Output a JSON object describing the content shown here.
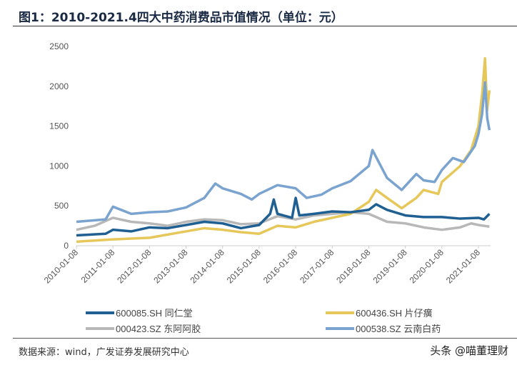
{
  "title": "图1：2010-2021.4四大中药消费品市值情况（单位：元）",
  "source": "数据来源：wind，广发证券发展研究中心",
  "watermark": "头条 @喵董理财",
  "chart_data": {
    "type": "line",
    "title": "图1：2010-2021.4四大中药消费品市值情况（单位：元）",
    "ylim": [
      0,
      2500
    ],
    "yticks": [
      "0",
      "500",
      "1000",
      "1500",
      "2000",
      "2500"
    ],
    "xlim": [
      2010.0,
      2021.3
    ],
    "xticks": [
      "2010-01-08",
      "2011-01-08",
      "2012-01-08",
      "2013-01-08",
      "2014-01-08",
      "2015-01-08",
      "2016-01-08",
      "2017-01-08",
      "2018-01-08",
      "2019-01-08",
      "2020-01-08",
      "2021-01-08"
    ],
    "grid": false,
    "legend_placement": "bottom",
    "series": [
      {
        "name": "600085.SH 同仁堂",
        "color": "#1f5f91",
        "points": [
          [
            2010,
            130
          ],
          [
            2010.8,
            150
          ],
          [
            2011,
            200
          ],
          [
            2011.5,
            180
          ],
          [
            2012,
            230
          ],
          [
            2012.5,
            220
          ],
          [
            2013,
            260
          ],
          [
            2013.5,
            300
          ],
          [
            2014,
            280
          ],
          [
            2014.5,
            220
          ],
          [
            2015,
            260
          ],
          [
            2015.3,
            400
          ],
          [
            2015.4,
            580
          ],
          [
            2015.5,
            400
          ],
          [
            2015.9,
            350
          ],
          [
            2016,
            600
          ],
          [
            2016.1,
            380
          ],
          [
            2016.5,
            400
          ],
          [
            2017,
            430
          ],
          [
            2017.5,
            420
          ],
          [
            2018,
            450
          ],
          [
            2018.2,
            520
          ],
          [
            2018.5,
            450
          ],
          [
            2019,
            380
          ],
          [
            2019.5,
            360
          ],
          [
            2020,
            360
          ],
          [
            2020.5,
            340
          ],
          [
            2021,
            350
          ],
          [
            2021.15,
            330
          ],
          [
            2021.3,
            400
          ]
        ]
      },
      {
        "name": "600436.SH 片仔癀",
        "color": "#e6c75a",
        "points": [
          [
            2010,
            50
          ],
          [
            2011,
            80
          ],
          [
            2012,
            100
          ],
          [
            2013,
            180
          ],
          [
            2013.5,
            220
          ],
          [
            2014,
            200
          ],
          [
            2014.5,
            170
          ],
          [
            2015,
            150
          ],
          [
            2015.5,
            250
          ],
          [
            2016,
            230
          ],
          [
            2016.5,
            300
          ],
          [
            2017,
            350
          ],
          [
            2017.5,
            400
          ],
          [
            2018,
            550
          ],
          [
            2018.2,
            700
          ],
          [
            2018.5,
            600
          ],
          [
            2018.9,
            470
          ],
          [
            2019.3,
            600
          ],
          [
            2019.5,
            700
          ],
          [
            2019.9,
            650
          ],
          [
            2020,
            800
          ],
          [
            2020.5,
            1000
          ],
          [
            2020.8,
            1200
          ],
          [
            2021,
            1500
          ],
          [
            2021.1,
            1900
          ],
          [
            2021.18,
            2350
          ],
          [
            2021.24,
            1700
          ],
          [
            2021.3,
            1950
          ]
        ]
      },
      {
        "name": "000423.SZ 东阿阿胶",
        "color": "#b8b8b8",
        "points": [
          [
            2010,
            200
          ],
          [
            2010.5,
            250
          ],
          [
            2011,
            350
          ],
          [
            2011.5,
            300
          ],
          [
            2012,
            280
          ],
          [
            2012.5,
            250
          ],
          [
            2013,
            300
          ],
          [
            2013.5,
            330
          ],
          [
            2014,
            320
          ],
          [
            2014.5,
            270
          ],
          [
            2015,
            280
          ],
          [
            2015.5,
            370
          ],
          [
            2016,
            330
          ],
          [
            2016.5,
            380
          ],
          [
            2017,
            400
          ],
          [
            2017.5,
            420
          ],
          [
            2018,
            400
          ],
          [
            2018.5,
            300
          ],
          [
            2019,
            280
          ],
          [
            2019.5,
            230
          ],
          [
            2020,
            200
          ],
          [
            2020.5,
            230
          ],
          [
            2020.8,
            280
          ],
          [
            2021,
            260
          ],
          [
            2021.3,
            240
          ]
        ]
      },
      {
        "name": "000538.SZ 云南白药",
        "color": "#7aa3cf",
        "points": [
          [
            2010,
            300
          ],
          [
            2010.8,
            330
          ],
          [
            2011,
            490
          ],
          [
            2011.5,
            400
          ],
          [
            2012,
            420
          ],
          [
            2012.5,
            430
          ],
          [
            2013,
            480
          ],
          [
            2013.5,
            600
          ],
          [
            2013.8,
            780
          ],
          [
            2014,
            720
          ],
          [
            2014.5,
            650
          ],
          [
            2014.8,
            580
          ],
          [
            2015,
            650
          ],
          [
            2015.5,
            760
          ],
          [
            2016,
            720
          ],
          [
            2016.3,
            600
          ],
          [
            2016.7,
            640
          ],
          [
            2017,
            720
          ],
          [
            2017.5,
            810
          ],
          [
            2018,
            1000
          ],
          [
            2018.1,
            1200
          ],
          [
            2018.5,
            850
          ],
          [
            2018.9,
            700
          ],
          [
            2019.3,
            900
          ],
          [
            2019.5,
            820
          ],
          [
            2019.8,
            800
          ],
          [
            2020,
            950
          ],
          [
            2020.3,
            1100
          ],
          [
            2020.6,
            1050
          ],
          [
            2020.9,
            1250
          ],
          [
            2021,
            1400
          ],
          [
            2021.1,
            1650
          ],
          [
            2021.18,
            2050
          ],
          [
            2021.24,
            1600
          ],
          [
            2021.3,
            1450
          ]
        ]
      }
    ]
  }
}
